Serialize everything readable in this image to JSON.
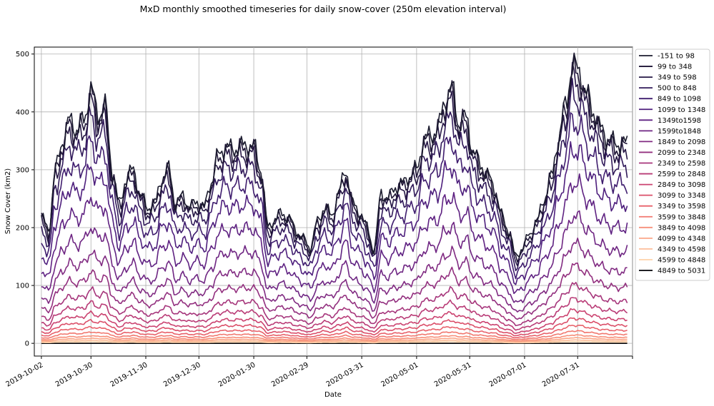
{
  "chart_data": {
    "type": "line",
    "title": "MxD monthly smoothed timeseries for daily snow-cover (250m elevation interval)",
    "xlabel": "Date",
    "ylabel": "Snow Cover (km2)",
    "xlim": [
      "2019-09-28",
      "2020-08-31"
    ],
    "ylim": [
      -22,
      512
    ],
    "yticks": [
      0,
      100,
      200,
      300,
      400,
      500
    ],
    "xticks": [
      "2019-10-02",
      "2019-10-30",
      "2019-11-30",
      "2019-12-30",
      "2020-01-30",
      "2020-02-29",
      "2020-03-31",
      "2020-05-01",
      "2020-05-31",
      "2020-07-01",
      "2020-07-31",
      "2020-08-31"
    ],
    "xtick_labels": [
      "2019-10-02",
      "2019-10-30",
      "2019-11-30",
      "2019-12-30",
      "2020-01-30",
      "2020-02-29",
      "2020-03-31",
      "2020-05-01",
      "2020-05-31",
      "2020-07-01",
      "2020-07-31",
      ""
    ],
    "grid": true,
    "legend_position": "outside right, top",
    "date_range": [
      "2019-10-02",
      "2020-08-28"
    ],
    "total": {
      "x": [
        "2019-10-02",
        "2019-10-06",
        "2019-10-10",
        "2019-10-14",
        "2019-10-18",
        "2019-10-22",
        "2019-10-26",
        "2019-10-30",
        "2019-11-03",
        "2019-11-07",
        "2019-11-11",
        "2019-11-15",
        "2019-11-19",
        "2019-11-23",
        "2019-11-27",
        "2019-12-01",
        "2019-12-05",
        "2019-12-09",
        "2019-12-13",
        "2019-12-17",
        "2019-12-21",
        "2019-12-25",
        "2019-12-29",
        "2020-01-02",
        "2020-01-06",
        "2020-01-10",
        "2020-01-14",
        "2020-01-18",
        "2020-01-22",
        "2020-01-26",
        "2020-01-30",
        "2020-02-03",
        "2020-02-07",
        "2020-02-11",
        "2020-02-15",
        "2020-02-19",
        "2020-02-23",
        "2020-02-27",
        "2020-03-02",
        "2020-03-06",
        "2020-03-10",
        "2020-03-14",
        "2020-03-18",
        "2020-03-22",
        "2020-03-26",
        "2020-03-30",
        "2020-04-03",
        "2020-04-07",
        "2020-04-11",
        "2020-04-15",
        "2020-04-19",
        "2020-04-23",
        "2020-04-27",
        "2020-05-01",
        "2020-05-05",
        "2020-05-09",
        "2020-05-13",
        "2020-05-17",
        "2020-05-21",
        "2020-05-25",
        "2020-05-29",
        "2020-06-02",
        "2020-06-06",
        "2020-06-10",
        "2020-06-14",
        "2020-06-18",
        "2020-06-22",
        "2020-06-26",
        "2020-06-30",
        "2020-07-04",
        "2020-07-08",
        "2020-07-12",
        "2020-07-16",
        "2020-07-20",
        "2020-07-24",
        "2020-07-28",
        "2020-08-01",
        "2020-08-05",
        "2020-08-09",
        "2020-08-13",
        "2020-08-17",
        "2020-08-21",
        "2020-08-25",
        "2020-08-28"
      ],
      "y": [
        218,
        196,
        300,
        350,
        385,
        370,
        385,
        440,
        395,
        410,
        300,
        240,
        285,
        300,
        255,
        235,
        240,
        285,
        300,
        240,
        255,
        235,
        245,
        235,
        280,
        325,
        340,
        335,
        340,
        342,
        340,
        300,
        200,
        215,
        225,
        215,
        195,
        180,
        165,
        210,
        235,
        220,
        260,
        300,
        240,
        225,
        200,
        160,
        260,
        250,
        270,
        275,
        290,
        300,
        350,
        360,
        370,
        420,
        440,
        380,
        390,
        330,
        310,
        290,
        270,
        220,
        195,
        150,
        165,
        190,
        210,
        250,
        285,
        350,
        410,
        480,
        470,
        430,
        400,
        370,
        355,
        345,
        345,
        345
      ]
    },
    "band_fractions": [
      1.0,
      0.98,
      0.95,
      0.89,
      0.8,
      0.7,
      0.58,
      0.46,
      0.36,
      0.28,
      0.21,
      0.16,
      0.12,
      0.09,
      0.065,
      0.045,
      0.03,
      0.02,
      0.012,
      0.006,
      0.0
    ],
    "series": [
      {
        "name": "-151 to 98",
        "color": "#1b1b2e"
      },
      {
        "name": "99 to 348",
        "color": "#1f1537"
      },
      {
        "name": "349 to 598",
        "color": "#271846"
      },
      {
        "name": "500 to 848",
        "color": "#311a5a"
      },
      {
        "name": "849 to 1098",
        "color": "#3f1d6e"
      },
      {
        "name": "1099 to 1348",
        "color": "#4e1f7d"
      },
      {
        "name": "1349to1598",
        "color": "#5f2282"
      },
      {
        "name": "1599to1848",
        "color": "#6f2683"
      },
      {
        "name": "1849 to 2098",
        "color": "#812b82"
      },
      {
        "name": "2099 to 2348",
        "color": "#93307f"
      },
      {
        "name": "2349 to 2598",
        "color": "#a6357b"
      },
      {
        "name": "2599 to 2848",
        "color": "#b93b76"
      },
      {
        "name": "2849 to 3098",
        "color": "#cb4370"
      },
      {
        "name": "3099 to 3348",
        "color": "#db4f69"
      },
      {
        "name": "3349 to 3598",
        "color": "#e8616a"
      },
      {
        "name": "3599 to 3848",
        "color": "#f1786f"
      },
      {
        "name": "3849 to 4098",
        "color": "#f78f7a"
      },
      {
        "name": "4099 to 4348",
        "color": "#fba688"
      },
      {
        "name": "4349 to 4598",
        "color": "#fdbe9a"
      },
      {
        "name": "4599 to 4848",
        "color": "#fed6af"
      },
      {
        "name": "4849 to 5031",
        "color": "#000004"
      }
    ]
  }
}
